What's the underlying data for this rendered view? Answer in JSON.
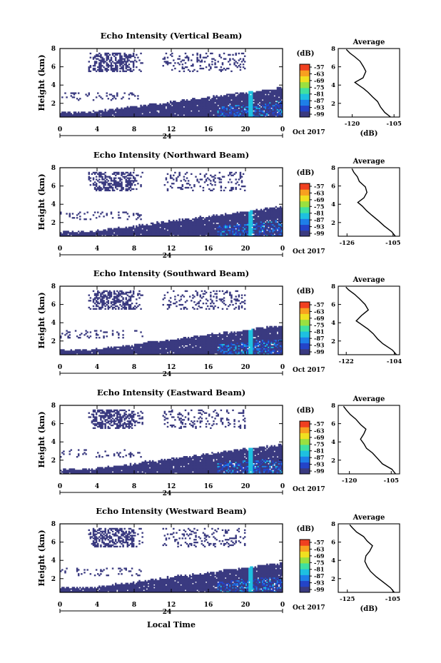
{
  "figure": {
    "xlabel": "Local Time",
    "colorbar_unit": "(dB)",
    "average_title": "Average",
    "average_xlabel": "(dB)",
    "date_label": "Oct 2017"
  },
  "colors": {
    "colormap": [
      "#3a3a80",
      "#2444c8",
      "#1e7fe8",
      "#1ec0e0",
      "#40e0a0",
      "#9ae040",
      "#f0e020",
      "#f8a020",
      "#f04020"
    ],
    "background": "#ffffff"
  },
  "chart_data": [
    {
      "type": "heatmap",
      "title": "Echo Intensity (Vertical Beam)",
      "ylabel": "Height (km)",
      "x_ticks": [
        "0",
        "4",
        "8",
        "12",
        "16",
        "20",
        "0"
      ],
      "x_day_label": "24",
      "x_range_hours": [
        0,
        24
      ],
      "y_ticks": [
        "2",
        "4",
        "6",
        "8"
      ],
      "y_range_km": [
        0.5,
        8
      ],
      "colorbar_ticks": [
        "-57",
        "-63",
        "-69",
        "-75",
        "-81",
        "-87",
        "-93",
        "-99"
      ],
      "average_profile": {
        "x_ticks": [
          "-120",
          "-105"
        ],
        "x_range": [
          -125,
          -103
        ],
        "y_ticks": [
          "2",
          "4",
          "6",
          "8"
        ],
        "points": [
          [
            -106.5,
            0.5
          ],
          [
            -108,
            1.0
          ],
          [
            -110,
            1.6
          ],
          [
            -111,
            2.2
          ],
          [
            -113,
            2.7
          ],
          [
            -114,
            3.2
          ],
          [
            -116,
            3.6
          ],
          [
            -118,
            4.0
          ],
          [
            -119,
            4.3
          ],
          [
            -116,
            4.8
          ],
          [
            -115,
            5.5
          ],
          [
            -116,
            6.0
          ],
          [
            -117,
            6.6
          ],
          [
            -119,
            7.1
          ],
          [
            -121,
            7.5
          ],
          [
            -122,
            7.9
          ]
        ]
      }
    },
    {
      "type": "heatmap",
      "title": "Echo Intensity (Northward Beam)",
      "ylabel": "Height (km)",
      "x_ticks": [
        "0",
        "4",
        "8",
        "12",
        "16",
        "20",
        "0"
      ],
      "x_day_label": "24",
      "x_range_hours": [
        0,
        24
      ],
      "y_ticks": [
        "2",
        "4",
        "6",
        "8"
      ],
      "y_range_km": [
        0.5,
        8
      ],
      "colorbar_ticks": [
        "-57",
        "-63",
        "-69",
        "-75",
        "-81",
        "-87",
        "-93",
        "-99"
      ],
      "average_profile": {
        "x_ticks": [
          "-126",
          "-105"
        ],
        "x_range": [
          -130,
          -102
        ],
        "y_ticks": [
          "2",
          "4",
          "6",
          "8"
        ],
        "points": [
          [
            -104,
            0.5
          ],
          [
            -106,
            1.0
          ],
          [
            -109,
            1.6
          ],
          [
            -112,
            2.2
          ],
          [
            -115,
            2.8
          ],
          [
            -117,
            3.3
          ],
          [
            -119,
            3.8
          ],
          [
            -121,
            4.2
          ],
          [
            -118,
            4.7
          ],
          [
            -117,
            5.3
          ],
          [
            -118,
            5.9
          ],
          [
            -120,
            6.5
          ],
          [
            -121,
            7.0
          ],
          [
            -123,
            7.5
          ],
          [
            -124,
            7.9
          ]
        ]
      }
    },
    {
      "type": "heatmap",
      "title": "Echo Intensity (Southward Beam)",
      "ylabel": "Height (km)",
      "x_ticks": [
        "0",
        "4",
        "8",
        "12",
        "16",
        "20",
        "0"
      ],
      "x_day_label": "24",
      "x_range_hours": [
        0,
        24
      ],
      "y_ticks": [
        "2",
        "4",
        "6",
        "8"
      ],
      "y_range_km": [
        0.5,
        8
      ],
      "colorbar_ticks": [
        "-57",
        "-63",
        "-69",
        "-75",
        "-81",
        "-87",
        "-93",
        "-99"
      ],
      "average_profile": {
        "x_ticks": [
          "-122",
          "-104"
        ],
        "x_range": [
          -125,
          -102
        ],
        "y_ticks": [
          "2",
          "4",
          "6",
          "8"
        ],
        "points": [
          [
            -103,
            0.5
          ],
          [
            -105,
            1.0
          ],
          [
            -108,
            1.7
          ],
          [
            -110,
            2.2
          ],
          [
            -112,
            2.8
          ],
          [
            -114,
            3.3
          ],
          [
            -116,
            3.8
          ],
          [
            -118,
            4.2
          ],
          [
            -116,
            4.8
          ],
          [
            -114,
            5.4
          ],
          [
            -115,
            6.0
          ],
          [
            -117,
            6.6
          ],
          [
            -119,
            7.1
          ],
          [
            -121,
            7.6
          ],
          [
            -122,
            7.9
          ]
        ]
      }
    },
    {
      "type": "heatmap",
      "title": "Echo Intensity (Eastward Beam)",
      "ylabel": "Height (km)",
      "x_ticks": [
        "0",
        "4",
        "8",
        "12",
        "16",
        "20",
        "0"
      ],
      "x_day_label": "24",
      "x_range_hours": [
        0,
        24
      ],
      "y_ticks": [
        "2",
        "4",
        "6",
        "8"
      ],
      "y_range_km": [
        0.5,
        8
      ],
      "colorbar_ticks": [
        "-57",
        "-63",
        "-69",
        "-75",
        "-81",
        "-87",
        "-93",
        "-99"
      ],
      "average_profile": {
        "x_ticks": [
          "-120",
          "-105"
        ],
        "x_range": [
          -124,
          -102
        ],
        "y_ticks": [
          "2",
          "4",
          "6",
          "8"
        ],
        "points": [
          [
            -103.5,
            0.5
          ],
          [
            -105,
            1.0
          ],
          [
            -108,
            1.6
          ],
          [
            -110,
            2.2
          ],
          [
            -112,
            2.8
          ],
          [
            -114,
            3.3
          ],
          [
            -115,
            3.8
          ],
          [
            -116,
            4.3
          ],
          [
            -115,
            4.9
          ],
          [
            -114,
            5.4
          ],
          [
            -116,
            5.9
          ],
          [
            -118,
            6.5
          ],
          [
            -120,
            7.0
          ],
          [
            -121,
            7.5
          ],
          [
            -122,
            7.9
          ]
        ]
      }
    },
    {
      "type": "heatmap",
      "title": "Echo Intensity (Westward Beam)",
      "ylabel": "Height (km)",
      "x_ticks": [
        "0",
        "4",
        "8",
        "12",
        "16",
        "20",
        "0"
      ],
      "x_day_label": "24",
      "x_range_hours": [
        0,
        24
      ],
      "y_ticks": [
        "2",
        "4",
        "6",
        "8"
      ],
      "y_range_km": [
        0.5,
        8
      ],
      "colorbar_ticks": [
        "-57",
        "-63",
        "-69",
        "-75",
        "-81",
        "-87",
        "-93",
        "-99"
      ],
      "average_profile": {
        "x_ticks": [
          "-125",
          "-105"
        ],
        "x_range": [
          -129,
          -102
        ],
        "y_ticks": [
          "2",
          "4",
          "6",
          "8"
        ],
        "points": [
          [
            -104,
            0.5
          ],
          [
            -106,
            1.0
          ],
          [
            -109,
            1.6
          ],
          [
            -112,
            2.2
          ],
          [
            -115,
            2.8
          ],
          [
            -116,
            3.3
          ],
          [
            -117,
            3.9
          ],
          [
            -117,
            4.5
          ],
          [
            -115,
            5.0
          ],
          [
            -114,
            5.6
          ],
          [
            -116,
            6.1
          ],
          [
            -118,
            6.6
          ],
          [
            -121,
            7.1
          ],
          [
            -123,
            7.6
          ],
          [
            -124,
            7.9
          ]
        ]
      }
    }
  ]
}
